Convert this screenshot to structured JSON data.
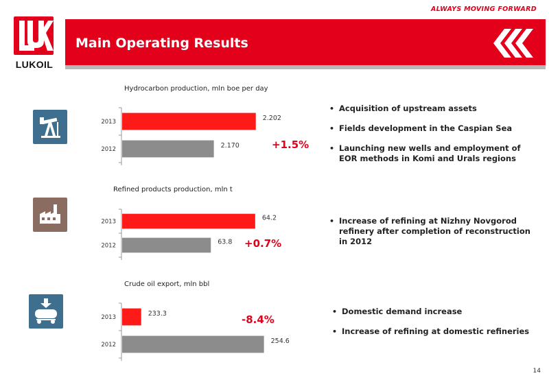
{
  "header": {
    "tagline": "ALWAYS MOVING FORWARD",
    "title": "Main Operating Results",
    "logo_text": "LUKOIL",
    "brand_color": "#e3001b"
  },
  "page_number": "14",
  "sections": [
    {
      "icon": "oil-pump-icon",
      "icon_color": "#3f6f8f",
      "change": "+1.5%",
      "bullets": [
        "Acquisition of upstream assets",
        "Fields development in the Caspian Sea",
        "Launching new wells and employment of EOR methods in Komi and Urals regions"
      ]
    },
    {
      "icon": "factory-icon",
      "icon_color": "#8a6d60",
      "change": "+0.7%",
      "bullets": [
        "Increase of refining at Nizhny Novgorod refinery after completion of reconstruction in 2012"
      ]
    },
    {
      "icon": "oil-tank-export-icon",
      "icon_color": "#3f6f8f",
      "change": "-8.4%",
      "bullets": [
        "Domestic demand increase",
        "Increase of refining at domestic refineries"
      ]
    }
  ],
  "chart_data": [
    {
      "type": "bar",
      "orientation": "horizontal",
      "title": "Hydrocarbon production,  mln boe per day",
      "categories": [
        "2013",
        "2012"
      ],
      "values": [
        2.202,
        2.17
      ],
      "value_labels": [
        "2.202",
        "2.170"
      ],
      "colors": [
        "#ff1a1a",
        "#8c8c8c"
      ],
      "xlim": [
        2.1,
        2.21
      ]
    },
    {
      "type": "bar",
      "orientation": "horizontal",
      "title": "Refined products production, mln t",
      "categories": [
        "2013",
        "2012"
      ],
      "values": [
        64.2,
        63.8
      ],
      "value_labels": [
        "64.2",
        "63.8"
      ],
      "colors": [
        "#ff1a1a",
        "#8c8c8c"
      ],
      "xlim": [
        63.0,
        64.3
      ]
    },
    {
      "type": "bar",
      "orientation": "horizontal",
      "title": "Crude oil export, mln bbl",
      "categories": [
        "2013",
        "2012"
      ],
      "values": [
        233.3,
        254.6
      ],
      "value_labels": [
        "233.3",
        "254.6"
      ],
      "colors": [
        "#ff1a1a",
        "#8c8c8c"
      ],
      "xlim": [
        230,
        255
      ]
    }
  ]
}
